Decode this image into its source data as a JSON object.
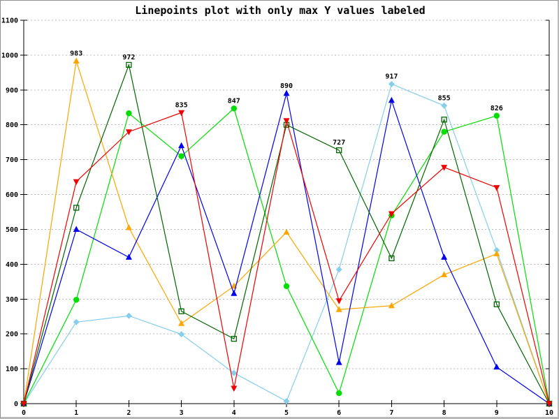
{
  "title": "Linepoints plot with only max Y values labeled",
  "colors": {
    "axis": "#000000",
    "grid": "#b8b8b8",
    "background": "#ffffff",
    "label_text": "#000000"
  },
  "chart_data": {
    "type": "line",
    "title": "Linepoints plot with only max Y values labeled",
    "xlabel": "",
    "ylabel": "",
    "xlim": [
      0,
      10
    ],
    "ylim": [
      0,
      1100
    ],
    "x_ticks": [
      0,
      1,
      2,
      3,
      4,
      5,
      6,
      7,
      8,
      9,
      10
    ],
    "y_ticks": [
      0,
      100,
      200,
      300,
      400,
      500,
      600,
      700,
      800,
      900,
      1000,
      1100
    ],
    "grid": "horizontal-dashed",
    "legend": "none",
    "x": [
      0,
      1,
      2,
      3,
      4,
      5,
      6,
      7,
      8,
      9,
      10
    ],
    "series": [
      {
        "name": "skyblue-diamond-series",
        "color": "#87CEEB",
        "marker": "diamond",
        "values": [
          0,
          234,
          252,
          199,
          88,
          7,
          385,
          917,
          855,
          440,
          0
        ]
      },
      {
        "name": "green-circle-series",
        "color": "#00DD00",
        "marker": "circle",
        "values": [
          0,
          298,
          833,
          710,
          847,
          337,
          30,
          540,
          780,
          826,
          0
        ]
      },
      {
        "name": "orange-triangle-series",
        "color": "#FFA500",
        "marker": "triangle-up",
        "values": [
          0,
          983,
          505,
          230,
          337,
          492,
          270,
          281,
          370,
          430,
          0
        ]
      },
      {
        "name": "blue-triangle-series",
        "color": "#0000EE",
        "marker": "triangle-up",
        "values": [
          0,
          500,
          420,
          740,
          316,
          890,
          118,
          870,
          420,
          105,
          0
        ]
      },
      {
        "name": "darkgreen-square-series",
        "color": "#006400",
        "marker": "square-open",
        "values": [
          0,
          562,
          972,
          265,
          186,
          800,
          727,
          417,
          815,
          285,
          0
        ]
      },
      {
        "name": "red-triangle-series",
        "color": "#EE0000",
        "marker": "triangle-down",
        "values": [
          0,
          637,
          780,
          835,
          44,
          812,
          295,
          545,
          678,
          620,
          0
        ]
      }
    ],
    "point_labels": [
      {
        "x": 1,
        "series": 2,
        "text": "983"
      },
      {
        "x": 2,
        "series": 4,
        "text": "972"
      },
      {
        "x": 3,
        "series": 5,
        "text": "835"
      },
      {
        "x": 4,
        "series": 1,
        "text": "847"
      },
      {
        "x": 5,
        "series": 3,
        "text": "890"
      },
      {
        "x": 6,
        "series": 4,
        "text": "727"
      },
      {
        "x": 7,
        "series": 0,
        "text": "917"
      },
      {
        "x": 8,
        "series": 0,
        "text": "855"
      },
      {
        "x": 9,
        "series": 1,
        "text": "826"
      }
    ]
  }
}
